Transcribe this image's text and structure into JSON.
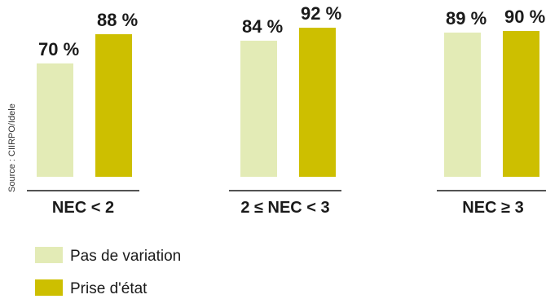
{
  "chart_data": {
    "type": "bar",
    "categories": [
      "NEC < 2",
      "2 ≤ NEC < 3",
      "NEC ≥ 3"
    ],
    "series": [
      {
        "name": "Pas de variation",
        "values": [
          70,
          84,
          89
        ],
        "labels": [
          "70 %",
          "84 %",
          "89 %"
        ]
      },
      {
        "name": "Prise d'état",
        "values": [
          88,
          92,
          90
        ],
        "labels": [
          "88 %",
          "92 %",
          "90 %"
        ]
      }
    ],
    "ylim": [
      0,
      100
    ],
    "grid": false,
    "legend_position": "bottom-left",
    "source": "Source : CIIRPO/Idele",
    "colors": {
      "series0": "#e3ebb6",
      "series1": "#cdbf00",
      "axis": "#1a1a1a"
    }
  }
}
